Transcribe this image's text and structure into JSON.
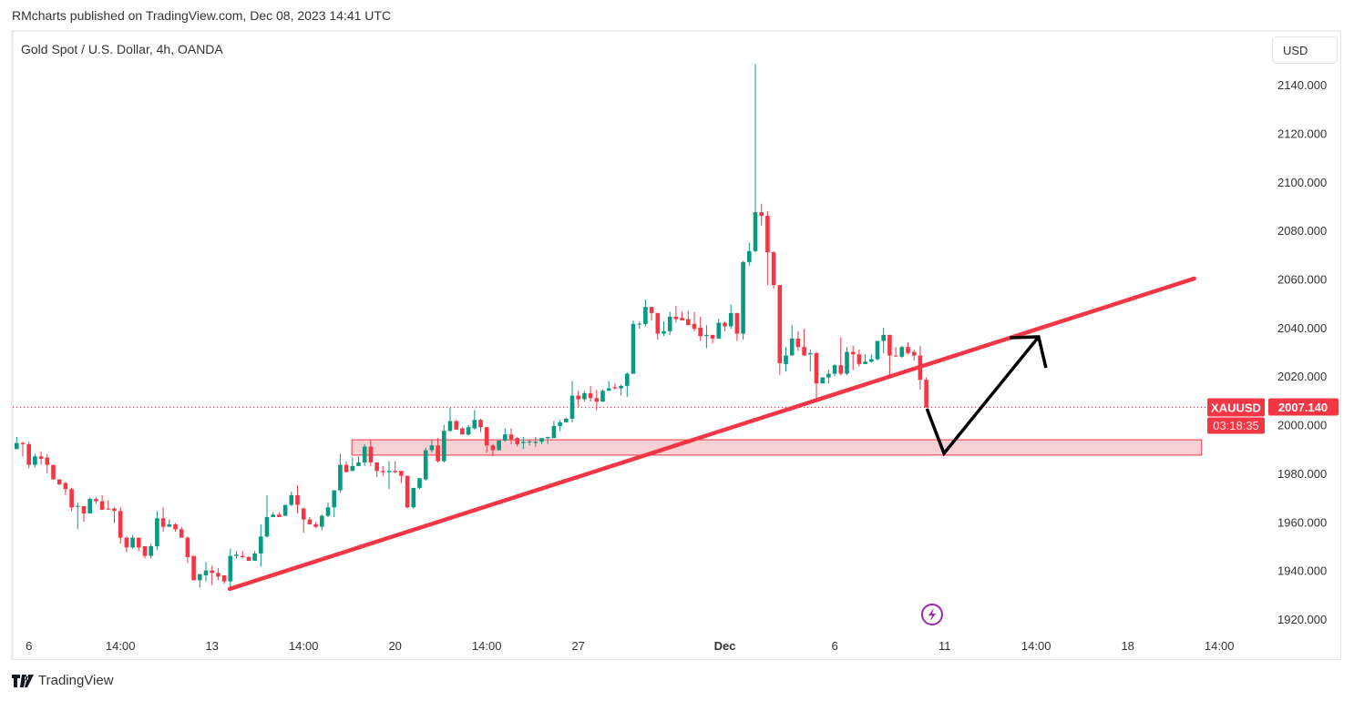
{
  "header": {
    "published": "RMcharts published on TradingView.com, Dec 08, 2023 14:41 UTC"
  },
  "chart_header": {
    "title": "Gold Spot / U.S. Dollar, 4h, OANDA",
    "currency_button": "USD"
  },
  "footer": {
    "brand": "TradingView",
    "logo_icon": "tradingview-logo-icon"
  },
  "colors": {
    "up": "#089981",
    "down": "#f23645",
    "trendline": "#f23645",
    "zone_fill": "#f9d0d4",
    "zone_border": "#f23645",
    "arrow": "#000000",
    "price_label": "#f23645",
    "event_icon": "#9c27b0"
  },
  "chart_data": {
    "type": "candlestick",
    "symbol": "XAUUSD",
    "title": "Gold Spot / U.S. Dollar, 4h, OANDA",
    "ylim": [
      1915,
      2155
    ],
    "y_ticks": [
      "1920.000",
      "1940.000",
      "1960.000",
      "1980.000",
      "2000.000",
      "2020.000",
      "2040.000",
      "2060.000",
      "2080.000",
      "2100.000",
      "2120.000",
      "2140.000"
    ],
    "y_tick_values": [
      1920,
      1940,
      1960,
      1980,
      2000,
      2020,
      2040,
      2060,
      2080,
      2100,
      2120,
      2140
    ],
    "x_ticks": [
      {
        "label": "6",
        "bar": 2
      },
      {
        "label": "14:00",
        "bar": 17
      },
      {
        "label": "13",
        "bar": 32
      },
      {
        "label": "14:00",
        "bar": 47
      },
      {
        "label": "20",
        "bar": 62
      },
      {
        "label": "14:00",
        "bar": 77
      },
      {
        "label": "27",
        "bar": 92
      },
      {
        "label": "Dec",
        "bar": 116,
        "bold": true
      },
      {
        "label": "6",
        "bar": 134
      },
      {
        "label": "11",
        "bar": 152
      },
      {
        "label": "14:00",
        "bar": 167
      },
      {
        "label": "18",
        "bar": 182
      },
      {
        "label": "14:00",
        "bar": 197
      }
    ],
    "last_price": {
      "symbol": "XAUUSD",
      "price": "2007.140",
      "value": 2007.14,
      "countdown": "03:18:35"
    },
    "grid": false,
    "candles_ohlc": [
      [
        1990,
        1995,
        1990,
        1992.5
      ],
      [
        1992.5,
        1993,
        1987,
        1992
      ],
      [
        1992,
        1993,
        1982,
        1983.5
      ],
      [
        1983.5,
        1988,
        1982.5,
        1987
      ],
      [
        1987,
        1989,
        1983.5,
        1986
      ],
      [
        1986.5,
        1988,
        1980,
        1983.5
      ],
      [
        1983.5,
        1983.5,
        1977.5,
        1977.5
      ],
      [
        1977.5,
        1977.5,
        1975,
        1975.5
      ],
      [
        1976,
        1976.5,
        1971,
        1973.5
      ],
      [
        1973.5,
        1974,
        1964.5,
        1966
      ],
      [
        1966.5,
        1968,
        1957,
        1966.6
      ],
      [
        1966.5,
        1966.5,
        1960,
        1963.5
      ],
      [
        1963.5,
        1970,
        1963.5,
        1969.5
      ],
      [
        1969.5,
        1970,
        1967.5,
        1968.5
      ],
      [
        1968.5,
        1971,
        1965,
        1965
      ],
      [
        1965.5,
        1969,
        1965,
        1965.3
      ],
      [
        1965.5,
        1966,
        1959.5,
        1964.5
      ],
      [
        1964.5,
        1966,
        1951,
        1953.5
      ],
      [
        1953.5,
        1954,
        1947.5,
        1949.5
      ],
      [
        1949.5,
        1954.5,
        1949,
        1953.5
      ],
      [
        1953.5,
        1953.5,
        1948,
        1949.5
      ],
      [
        1950,
        1950,
        1945,
        1946
      ],
      [
        1946,
        1951,
        1945,
        1950
      ],
      [
        1950,
        1964.5,
        1948.5,
        1961.5
      ],
      [
        1961.5,
        1966,
        1956,
        1958
      ],
      [
        1958,
        1961,
        1958,
        1959
      ],
      [
        1959,
        1959.5,
        1956,
        1957
      ],
      [
        1957,
        1958,
        1953.5,
        1953.5
      ],
      [
        1953.5,
        1954,
        1943,
        1945.5
      ],
      [
        1946,
        1946,
        1936,
        1936
      ],
      [
        1936,
        1938.5,
        1933,
        1938.5
      ],
      [
        1938,
        1943.5,
        1935.5,
        1940
      ],
      [
        1940,
        1942,
        1934,
        1939
      ],
      [
        1939,
        1941,
        1936,
        1937.5
      ],
      [
        1938,
        1938,
        1934.5,
        1935.5
      ],
      [
        1935.5,
        1949,
        1932.5,
        1946
      ],
      [
        1946,
        1948,
        1945,
        1946.5
      ],
      [
        1946,
        1948,
        1945,
        1945.5
      ],
      [
        1945.5,
        1946,
        1944,
        1944
      ],
      [
        1944,
        1948,
        1944,
        1947
      ],
      [
        1947,
        1959,
        1941.5,
        1954
      ],
      [
        1954,
        1971,
        1953.5,
        1962
      ],
      [
        1962,
        1964,
        1962,
        1963
      ],
      [
        1963,
        1964,
        1962,
        1962
      ],
      [
        1962.5,
        1967,
        1962.5,
        1967
      ],
      [
        1967,
        1972.5,
        1966.5,
        1971
      ],
      [
        1971,
        1975,
        1963.5,
        1967
      ],
      [
        1965.5,
        1966,
        1955.5,
        1961
      ],
      [
        1961,
        1962,
        1959,
        1959
      ],
      [
        1959,
        1960,
        1957.5,
        1958
      ],
      [
        1958,
        1963,
        1956.5,
        1962.5
      ],
      [
        1962.5,
        1968,
        1962,
        1966
      ],
      [
        1966,
        1973,
        1962,
        1973
      ],
      [
        1973,
        1988,
        1972,
        1983.5
      ],
      [
        1983.5,
        1985,
        1980.5,
        1980.5
      ],
      [
        1981,
        1986.5,
        1981,
        1983
      ],
      [
        1983,
        1987,
        1983,
        1984.5
      ],
      [
        1984.5,
        1992,
        1983,
        1991
      ],
      [
        1991,
        1994,
        1983,
        1984.5
      ],
      [
        1984.5,
        1984.5,
        1978.5,
        1981
      ],
      [
        1981,
        1983,
        1979,
        1980.5
      ],
      [
        1980.5,
        1985,
        1973.5,
        1981
      ],
      [
        1981,
        1985,
        1980,
        1980.5
      ],
      [
        1981,
        1981,
        1976,
        1979
      ],
      [
        1979,
        1979,
        1965.5,
        1966
      ],
      [
        1966,
        1974,
        1965.5,
        1974
      ],
      [
        1974,
        1978,
        1973.5,
        1978
      ],
      [
        1977.5,
        1990.5,
        1977,
        1989.5
      ],
      [
        1989.5,
        1994,
        1988.5,
        1991.5
      ],
      [
        1991.5,
        1994.5,
        1984.5,
        1985
      ],
      [
        1985,
        2000,
        1984.5,
        1997.5
      ],
      [
        1997.5,
        2007,
        1997,
        2001.5
      ],
      [
        2001.5,
        2002,
        1998,
        1998
      ],
      [
        1998.5,
        1999,
        1996,
        1996
      ],
      [
        1996,
        2000,
        1995.5,
        1999
      ],
      [
        1998.5,
        2006,
        1998,
        2002
      ],
      [
        2002,
        2002.5,
        1997,
        1999
      ],
      [
        1999,
        1999,
        1988.5,
        1991.5
      ],
      [
        1991.5,
        1992,
        1987,
        1989.5
      ],
      [
        1989.5,
        1993.5,
        1989.5,
        1993.5
      ],
      [
        1993.5,
        1998.5,
        1993,
        1996
      ],
      [
        1996,
        1998.5,
        1992,
        1994
      ],
      [
        1994.5,
        1995,
        1991,
        1992
      ],
      [
        1992.5,
        1995,
        1990,
        1993
      ],
      [
        1993,
        1994,
        1991.5,
        1993.1
      ],
      [
        1992.5,
        1995,
        1991,
        1993
      ],
      [
        1993,
        1994.5,
        1992,
        1994.5
      ],
      [
        1994.5,
        1995,
        1992,
        1995
      ],
      [
        1994.5,
        2001.5,
        1994.5,
        1999.5
      ],
      [
        1999.5,
        2002,
        1997.5,
        2001
      ],
      [
        2001,
        2003,
        2001,
        2002.5
      ],
      [
        2002.5,
        2018,
        2001,
        2012
      ],
      [
        2012,
        2014,
        2007.5,
        2010.5
      ],
      [
        2010.5,
        2014,
        2009.5,
        2013
      ],
      [
        2013,
        2016,
        2009.5,
        2011
      ],
      [
        2011,
        2014.5,
        2006,
        2009.5
      ],
      [
        2009.5,
        2014.5,
        2009.5,
        2014
      ],
      [
        2014,
        2018,
        2014,
        2015
      ],
      [
        2015.5,
        2017,
        2014.5,
        2015
      ],
      [
        2015,
        2016.5,
        2012,
        2016
      ],
      [
        2016,
        2021.5,
        2011.5,
        2021
      ],
      [
        2021,
        2043,
        2021,
        2041.5
      ],
      [
        2041.5,
        2042.5,
        2039.5,
        2041.6
      ],
      [
        2041.5,
        2051.5,
        2040.5,
        2048.5
      ],
      [
        2048.5,
        2048.5,
        2043,
        2046
      ],
      [
        2046,
        2046,
        2035,
        2037.5
      ],
      [
        2037.5,
        2042.5,
        2036.5,
        2038.5
      ],
      [
        2038.5,
        2046.5,
        2037,
        2044.5
      ],
      [
        2044.5,
        2049,
        2042,
        2043.5
      ],
      [
        2044,
        2046.5,
        2043,
        2043
      ],
      [
        2043.5,
        2047,
        2041,
        2041
      ],
      [
        2041.5,
        2046.5,
        2038.5,
        2039.5
      ],
      [
        2040,
        2044.5,
        2034.5,
        2036.5
      ],
      [
        2036.5,
        2041,
        2031.5,
        2037
      ],
      [
        2037,
        2037,
        2033.5,
        2035.5
      ],
      [
        2035.5,
        2043.5,
        2035.5,
        2042
      ],
      [
        2042,
        2042.5,
        2038.5,
        2040.5
      ],
      [
        2040.5,
        2049.5,
        2039.5,
        2046
      ],
      [
        2046,
        2046,
        2034.5,
        2037.5
      ],
      [
        2037.5,
        2067.5,
        2035,
        2067
      ],
      [
        2067,
        2075,
        2065.5,
        2071.5
      ],
      [
        2071.5,
        2148.5,
        2071,
        2087.5
      ],
      [
        2087.5,
        2091,
        2082,
        2086
      ],
      [
        2086,
        2088,
        2057.5,
        2071
      ],
      [
        2071,
        2071.5,
        2056,
        2057.5
      ],
      [
        2057.5,
        2057.5,
        2020.5,
        2025.3
      ],
      [
        2025,
        2032,
        2022,
        2028.5
      ],
      [
        2028.5,
        2041,
        2028.5,
        2035.5
      ],
      [
        2035.5,
        2038.5,
        2030.5,
        2032
      ],
      [
        2032,
        2039.5,
        2028.5,
        2028.5
      ],
      [
        2029,
        2031,
        2022,
        2029.5
      ],
      [
        2029.5,
        2030,
        2011,
        2017
      ],
      [
        2017,
        2019.5,
        2017,
        2019.5
      ],
      [
        2019.5,
        2022.5,
        2017,
        2021
      ],
      [
        2021,
        2025,
        2020,
        2024.5
      ],
      [
        2024.5,
        2036,
        2020.3,
        2021
      ],
      [
        2021,
        2032,
        2020.5,
        2030
      ],
      [
        2030,
        2032.5,
        2022.5,
        2029
      ],
      [
        2029,
        2031,
        2024,
        2025
      ],
      [
        2025,
        2029,
        2025,
        2026
      ],
      [
        2026,
        2029,
        2025.5,
        2027
      ],
      [
        2027,
        2034.5,
        2026.5,
        2034.5
      ],
      [
        2034.5,
        2040,
        2029.5,
        2037
      ],
      [
        2037,
        2037,
        2020.5,
        2028.5
      ],
      [
        2028.5,
        2032,
        2028,
        2028.2
      ],
      [
        2028,
        2032.5,
        2027.5,
        2032
      ],
      [
        2032,
        2034,
        2029,
        2029.5
      ],
      [
        2030,
        2031,
        2026.5,
        2028.5
      ],
      [
        2028.5,
        2032.5,
        2014.5,
        2018.5
      ],
      [
        2018.5,
        2019.5,
        2007,
        2007.14
      ]
    ],
    "drawings": {
      "trendline": {
        "from": {
          "bar": 34.9,
          "price": 1932.4
        },
        "to": {
          "bar": 192.9,
          "price": 2060.2
        }
      },
      "zone": {
        "from_bar": 54.9,
        "to_bar": 194.1,
        "top": 1993.8,
        "bottom": 1987.5
      },
      "arrow_path": [
        {
          "bar": 149.1,
          "price": 2006.6
        },
        {
          "bar": 151.9,
          "price": 1988.2
        },
        {
          "bar": 167.4,
          "price": 2036.2
        }
      ],
      "arrow_head": [
        {
          "bar": 162.7,
          "price": 2035.8
        },
        {
          "bar": 167.4,
          "price": 2036.2
        },
        {
          "bar": 168.6,
          "price": 2023.4
        }
      ],
      "event_marker": {
        "bar": 149.5,
        "icon": "lightning-icon"
      }
    }
  }
}
